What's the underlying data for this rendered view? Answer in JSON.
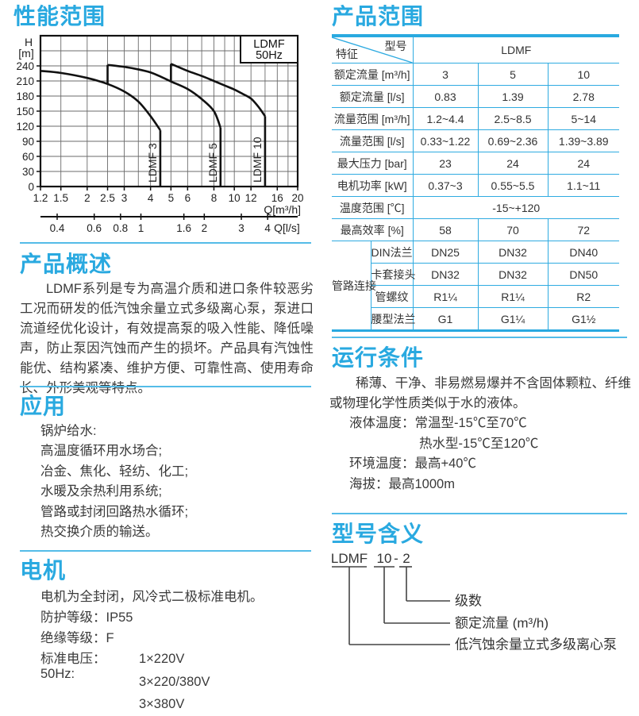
{
  "palette": {
    "accent": "#29a9e0",
    "divider": "#54bce8",
    "table_line": "#2fabe1",
    "text": "#3a3a3a",
    "chart_line": "#111111",
    "grid": "#6b6b6b"
  },
  "sections": {
    "performance": {
      "title": "性能范围"
    },
    "overview": {
      "title": "产品概述",
      "body": "LDMF系列是专为高温介质和进口条件较恶劣工况而研发的低汽蚀余量立式多级离心泵，泵进口流道经优化设计，有效提高泵的吸入性能、降低噪声，防止泵因汽蚀而产生的损坏。产品具有汽蚀性能优、结构紧凑、维护方便、可靠性高、使用寿命长、外形美观等特点。"
    },
    "application": {
      "title": "应用",
      "items": [
        "锅炉给水:",
        "高温度循环用水场合;",
        "冶金、焦化、轻纺、化工;",
        "水暖及余热利用系统;",
        "管路或封闭回路热水循环;",
        "热交换介质的输送。"
      ]
    },
    "motor": {
      "title": "电机",
      "lines": [
        "电机为全封闭，风冷式二极标准电机。",
        "防护等级：IP55",
        "绝缘等级：F"
      ],
      "voltage_label": "标准电压：50Hz:",
      "voltages": [
        "1×220V",
        "3×220/380V",
        "3×380V"
      ]
    },
    "product_range": {
      "title": "产品范围",
      "corner_top": "型号",
      "corner_bottom": "特征",
      "model_header": "LDMF",
      "rows": [
        {
          "label": "额定流量 [m³/h]",
          "values": [
            "3",
            "5",
            "10"
          ]
        },
        {
          "label": "额定流量 [l/s]",
          "values": [
            "0.83",
            "1.39",
            "2.78"
          ]
        },
        {
          "label": "流量范围 [m³/h]",
          "values": [
            "1.2~4.4",
            "2.5~8.5",
            "5~14"
          ]
        },
        {
          "label": "流量范围 [l/s]",
          "values": [
            "0.33~1.22",
            "0.69~2.36",
            "1.39~3.89"
          ]
        },
        {
          "label": "最大压力 [bar]",
          "values": [
            "23",
            "24",
            "24"
          ]
        },
        {
          "label": "电机功率 [kW]",
          "values": [
            "0.37~3",
            "0.55~5.5",
            "1.1~11"
          ]
        },
        {
          "label": "温度范围 [℃]",
          "span_value": "-15~+120"
        },
        {
          "label": "最高效率 [%]",
          "values": [
            "58",
            "70",
            "72"
          ]
        }
      ],
      "pipe_group": {
        "label": "管路连接",
        "rows": [
          {
            "label": "DIN法兰",
            "values": [
              "DN25",
              "DN32",
              "DN40"
            ]
          },
          {
            "label": "卡套接头",
            "values": [
              "DN32",
              "DN32",
              "DN50"
            ]
          },
          {
            "label": "管螺纹",
            "values": [
              "R1¼",
              "R1¼",
              "R2"
            ]
          },
          {
            "label": "腰型法兰",
            "values": [
              "G1",
              "G1¼",
              "G1½"
            ]
          }
        ]
      }
    },
    "operating": {
      "title": "运行条件",
      "body": "稀薄、干净、非易燃易爆并不含固体颗粒、纤维或物理化学性质类似于水的液体。",
      "lines": [
        {
          "text": "液体温度：常温型-15℃至70℃",
          "indent": 1
        },
        {
          "text": "热水型-15℃至120℃",
          "indent": 2
        },
        {
          "text": "环境温度：最高+40℃",
          "indent": 1
        },
        {
          "text": "海拔：最高1000m",
          "indent": 1
        }
      ]
    },
    "model_meaning": {
      "title": "型号含义",
      "code_parts": [
        {
          "text": "LDMF",
          "label": "低汽蚀余量立式多级离心泵"
        },
        {
          "text": "10",
          "label": "额定流量 (m³/h)"
        },
        {
          "text": "2",
          "label": "级数"
        }
      ],
      "separator": "-"
    }
  },
  "chart_data": {
    "type": "line",
    "legend": [
      "LDMF",
      "50Hz"
    ],
    "legend_position": "top-right",
    "grid": true,
    "x_axis": {
      "label": "Q[m³/h]",
      "scale": "log",
      "min": 1.2,
      "max": 20,
      "ticks": [
        1.2,
        1.5,
        2,
        2.5,
        3,
        4,
        5,
        6,
        8,
        10,
        12,
        16,
        20
      ],
      "gridlines": [
        1.5,
        2,
        2.5,
        3,
        3.5,
        4,
        5,
        6,
        7,
        8,
        9,
        10,
        12,
        14,
        16,
        18
      ]
    },
    "x_axis2": {
      "label": "Q[l/s]",
      "ticks": [
        0.4,
        0.6,
        0.8,
        1,
        1.6,
        2,
        3,
        4
      ],
      "unit_factor": 3.6
    },
    "y_axis": {
      "label_top": "H",
      "label_bottom": "[m]",
      "min": 0,
      "max": 300,
      "tick_step": 30,
      "tick_label_max": 240
    },
    "series": [
      {
        "name": "LDMF 3",
        "points": [
          [
            1.2,
            230
          ],
          [
            1.5,
            226
          ],
          [
            2,
            216
          ],
          [
            2.5,
            204
          ],
          [
            3,
            189
          ],
          [
            3.5,
            169
          ],
          [
            4,
            140
          ],
          [
            4.45,
            112
          ]
        ],
        "drop_to_zero_at": 4.45
      },
      {
        "name": "LDMF 5",
        "start_jump": [
          2.5,
          204
        ],
        "points": [
          [
            2.5,
            242
          ],
          [
            3,
            238
          ],
          [
            3.5,
            233
          ],
          [
            4,
            227
          ],
          [
            4.5,
            218
          ],
          [
            5,
            209
          ],
          [
            6,
            194
          ],
          [
            7,
            174
          ],
          [
            8,
            150
          ],
          [
            8.6,
            117
          ]
        ],
        "drop_to_zero_at": 8.6
      },
      {
        "name": "LDMF 10",
        "start_jump": [
          5,
          209
        ],
        "points": [
          [
            5,
            244
          ],
          [
            6,
            230
          ],
          [
            7,
            220
          ],
          [
            8,
            210
          ],
          [
            9,
            201
          ],
          [
            10,
            193
          ],
          [
            11,
            184
          ],
          [
            12,
            175
          ],
          [
            13,
            159
          ],
          [
            14,
            140
          ]
        ],
        "drop_to_zero_at": 14
      }
    ]
  }
}
